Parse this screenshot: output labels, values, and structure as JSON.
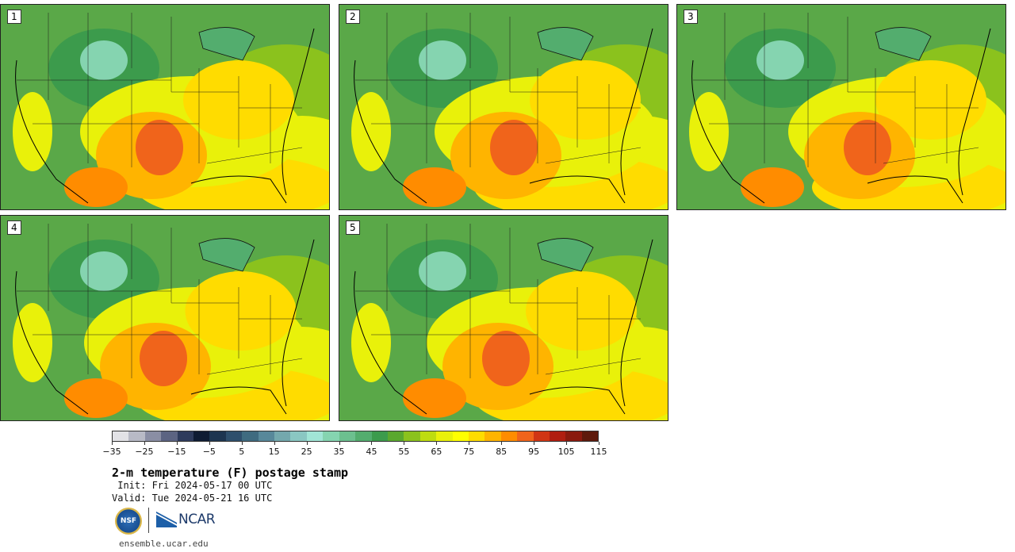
{
  "panels": [
    {
      "label": "1",
      "variant": 0
    },
    {
      "label": "2",
      "variant": 1
    },
    {
      "label": "3",
      "variant": 2
    },
    {
      "label": "4",
      "variant": 3
    },
    {
      "label": "5",
      "variant": 4
    }
  ],
  "colorbar": {
    "colors": [
      "#e2e2e6",
      "#b8bac6",
      "#8a8ea4",
      "#5c6482",
      "#2e3b5c",
      "#0f1c33",
      "#1d3550",
      "#2e4f6c",
      "#3f6b80",
      "#58889a",
      "#74a8ad",
      "#8ac7c2",
      "#a1e5d6",
      "#85d4b0",
      "#6cc08f",
      "#53ad6e",
      "#3c9b4c",
      "#5aa82e",
      "#8bc21d",
      "#bedc10",
      "#e9f10a",
      "#ffff00",
      "#ffdc00",
      "#ffb400",
      "#ff8c00",
      "#f0641b",
      "#d03514",
      "#b01e10",
      "#8a1a0e",
      "#5e1a0c"
    ],
    "tick_labels": [
      "−35",
      "−25",
      "−15",
      "−5",
      "5",
      "15",
      "25",
      "35",
      "45",
      "55",
      "65",
      "75",
      "85",
      "95",
      "105",
      "115"
    ]
  },
  "title": "2-m temperature (F) postage stamp",
  "init": " Init: Fri 2024-05-17 00 UTC",
  "valid": "Valid: Tue 2024-05-21 16 UTC",
  "logos": {
    "nsf": "NSF",
    "ncar": "NCAR"
  },
  "url": "ensemble.ucar.edu"
}
